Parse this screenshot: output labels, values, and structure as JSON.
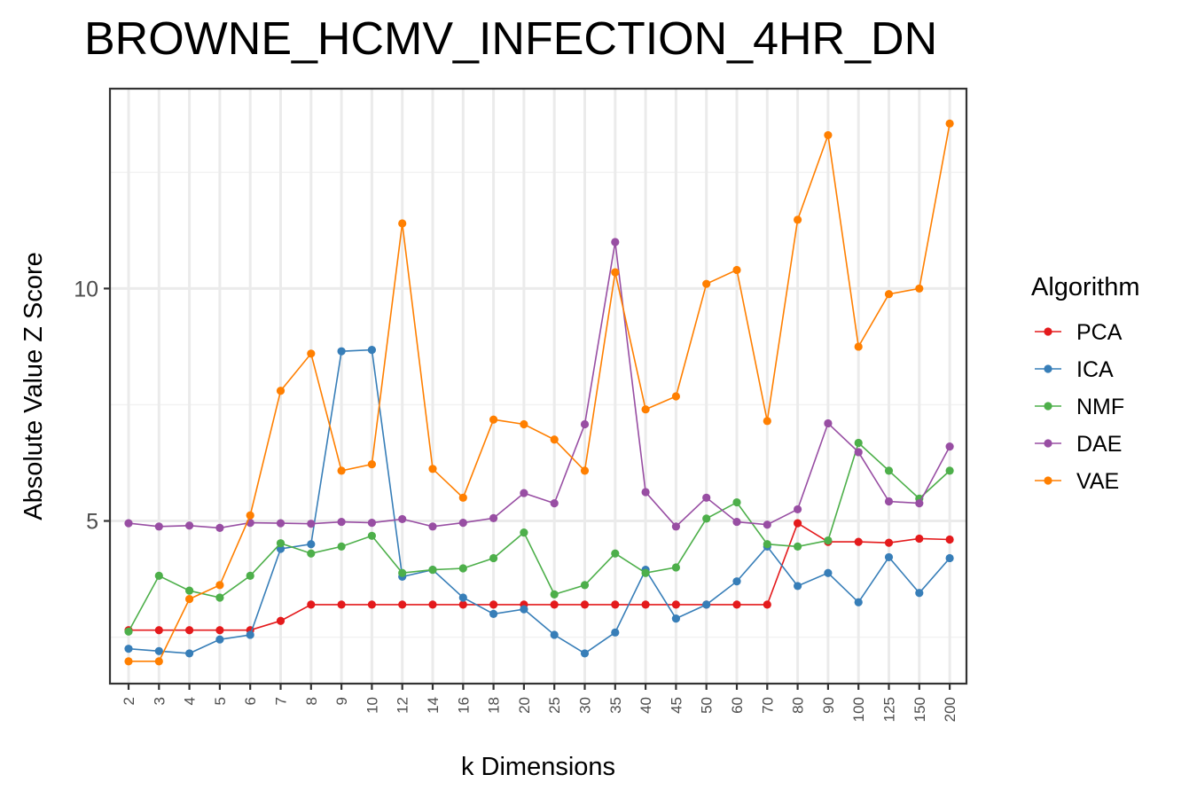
{
  "chart_data": {
    "type": "line",
    "title": "BROWNE_HCMV_INFECTION_4HR_DN",
    "xlabel": "k Dimensions",
    "ylabel": "Absolute Value Z Score",
    "categories": [
      "2",
      "3",
      "4",
      "5",
      "6",
      "7",
      "8",
      "9",
      "10",
      "12",
      "14",
      "16",
      "18",
      "20",
      "25",
      "30",
      "35",
      "40",
      "45",
      "50",
      "60",
      "70",
      "80",
      "90",
      "100",
      "125",
      "150",
      "200"
    ],
    "yticks": [
      5,
      10
    ],
    "ylim": [
      1.5,
      14.3
    ],
    "grid": true,
    "legend": {
      "title": "Algorithm",
      "position": "right"
    },
    "series": [
      {
        "name": "PCA",
        "color": "#e41a1c",
        "values": [
          2.65,
          2.65,
          2.65,
          2.65,
          2.65,
          2.85,
          3.2,
          3.2,
          3.2,
          3.2,
          3.2,
          3.2,
          3.2,
          3.2,
          3.2,
          3.2,
          3.2,
          3.2,
          3.2,
          3.2,
          3.2,
          3.2,
          4.95,
          4.55,
          4.55,
          4.53,
          4.62,
          4.6
        ]
      },
      {
        "name": "ICA",
        "color": "#377eb8",
        "values": [
          2.25,
          2.2,
          2.15,
          2.45,
          2.55,
          4.4,
          4.5,
          8.65,
          8.68,
          3.8,
          3.95,
          3.35,
          3.0,
          3.1,
          2.55,
          2.15,
          2.6,
          3.95,
          2.9,
          3.2,
          3.7,
          4.45,
          3.6,
          3.88,
          3.25,
          4.22,
          3.45,
          4.2
        ]
      },
      {
        "name": "NMF",
        "color": "#4daf4a",
        "values": [
          2.62,
          3.82,
          3.5,
          3.35,
          3.82,
          4.52,
          4.3,
          4.45,
          4.68,
          3.88,
          3.95,
          3.98,
          4.2,
          4.75,
          3.42,
          3.62,
          4.3,
          3.88,
          4.0,
          5.05,
          5.4,
          4.5,
          4.45,
          4.58,
          6.68,
          6.08,
          5.48,
          6.08
        ]
      },
      {
        "name": "DAE",
        "color": "#984ea3",
        "values": [
          4.95,
          4.88,
          4.9,
          4.85,
          4.96,
          4.95,
          4.94,
          4.98,
          4.96,
          5.04,
          4.88,
          4.96,
          5.06,
          5.6,
          5.38,
          7.08,
          11.0,
          5.62,
          4.88,
          5.5,
          4.98,
          4.92,
          5.25,
          7.1,
          6.48,
          5.42,
          5.38,
          6.6
        ]
      },
      {
        "name": "VAE",
        "color": "#ff7f00",
        "values": [
          1.98,
          1.98,
          3.32,
          3.62,
          5.12,
          7.8,
          8.6,
          6.08,
          6.22,
          11.4,
          6.12,
          5.5,
          7.18,
          7.08,
          6.75,
          6.08,
          10.35,
          7.4,
          7.68,
          10.1,
          10.4,
          7.15,
          11.48,
          13.3,
          8.75,
          9.88,
          10.0,
          13.55
        ]
      }
    ]
  }
}
